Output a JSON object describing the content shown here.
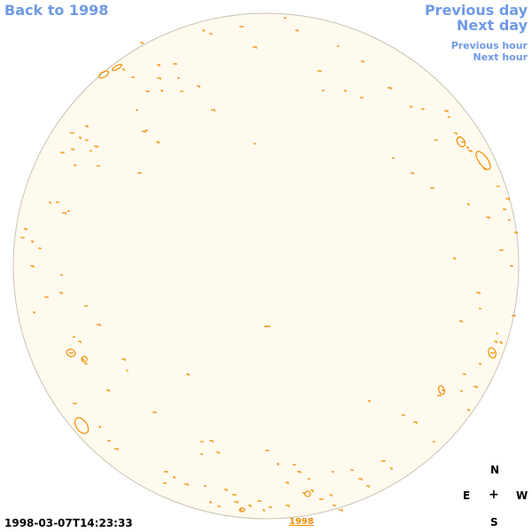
{
  "nav": {
    "back": "Back to 1998",
    "previous_day": "Previous day",
    "next_day": "Next day",
    "previous_hour": "Previous hour",
    "next_hour": "Next hour"
  },
  "timestamp": "1998-03-07T14:23:33",
  "year_link": "1998",
  "compass": {
    "north": "N",
    "east": "E",
    "center": "+",
    "west": "W",
    "south": "S"
  },
  "colors": {
    "disk_fill": "#fffaee",
    "disk_stroke": "#c9c2b4",
    "contour": "#f08c00",
    "link": "#6f9ae6"
  }
}
